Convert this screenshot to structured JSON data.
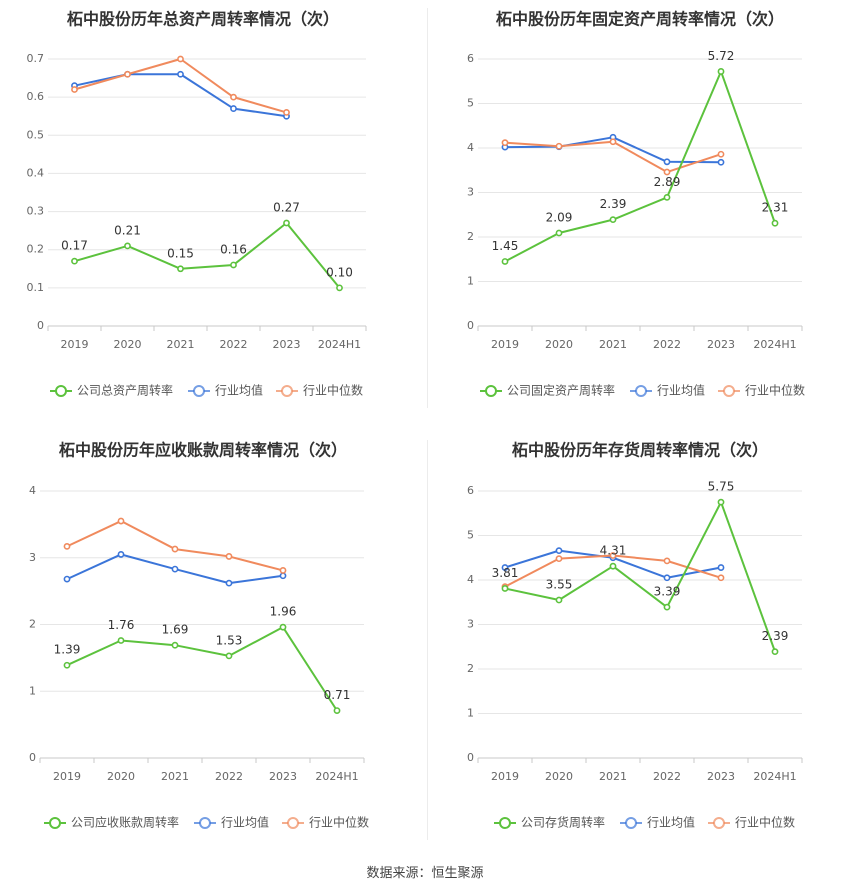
{
  "source_text": "数据来源：恒生聚源",
  "colors": {
    "company": "#5cc23d",
    "avg": "#3b75d9",
    "median": "#f08a5d",
    "grid": "#e6e6e6",
    "axis": "#c9c9c9",
    "tick": "#666666",
    "title": "#333333"
  },
  "chart_data": [
    {
      "type": "line",
      "title": "柘中股份历年总资产周转率情况（次）",
      "categories": [
        "2019",
        "2020",
        "2021",
        "2022",
        "2023",
        "2024H1"
      ],
      "ylim": [
        0,
        0.7
      ],
      "yticks": [
        "0",
        "0.1",
        "0.2",
        "0.3",
        "0.4",
        "0.5",
        "0.6",
        "0.7"
      ],
      "series": [
        {
          "name": "公司总资产周转率",
          "key": "company",
          "values": [
            0.17,
            0.21,
            0.15,
            0.16,
            0.27,
            0.1
          ],
          "labels": [
            "0.17",
            "0.21",
            "0.15",
            "0.16",
            "0.27",
            "0.10"
          ]
        },
        {
          "name": "行业均值",
          "key": "avg",
          "values": [
            0.63,
            0.66,
            0.66,
            0.57,
            0.55,
            null
          ]
        },
        {
          "name": "行业中位数",
          "key": "median",
          "values": [
            0.62,
            0.66,
            0.7,
            0.6,
            0.56,
            null
          ]
        }
      ]
    },
    {
      "type": "line",
      "title": "柘中股份历年固定资产周转率情况（次）",
      "categories": [
        "2019",
        "2020",
        "2021",
        "2022",
        "2023",
        "2024H1"
      ],
      "ylim": [
        0,
        6
      ],
      "yticks": [
        "0",
        "1",
        "2",
        "3",
        "4",
        "5",
        "6"
      ],
      "series": [
        {
          "name": "公司固定资产周转率",
          "key": "company",
          "values": [
            1.45,
            2.09,
            2.39,
            2.89,
            5.72,
            2.31
          ],
          "labels": [
            "1.45",
            "2.09",
            "2.39",
            "2.89",
            "5.72",
            "2.31"
          ]
        },
        {
          "name": "行业均值",
          "key": "avg",
          "values": [
            4.02,
            4.03,
            4.24,
            3.69,
            3.68,
            null
          ]
        },
        {
          "name": "行业中位数",
          "key": "median",
          "values": [
            4.12,
            4.04,
            4.14,
            3.46,
            3.86,
            null
          ]
        }
      ]
    },
    {
      "type": "line",
      "title": "柘中股份历年应收账款周转率情况（次）",
      "categories": [
        "2019",
        "2020",
        "2021",
        "2022",
        "2023",
        "2024H1"
      ],
      "ylim": [
        0,
        4
      ],
      "yticks": [
        "0",
        "1",
        "2",
        "3",
        "4"
      ],
      "series": [
        {
          "name": "公司应收账款周转率",
          "key": "company",
          "values": [
            1.39,
            1.76,
            1.69,
            1.53,
            1.96,
            0.71
          ],
          "labels": [
            "1.39",
            "1.76",
            "1.69",
            "1.53",
            "1.96",
            "0.71"
          ]
        },
        {
          "name": "行业均值",
          "key": "avg",
          "values": [
            2.68,
            3.05,
            2.83,
            2.62,
            2.73,
            null
          ]
        },
        {
          "name": "行业中位数",
          "key": "median",
          "values": [
            3.17,
            3.55,
            3.13,
            3.02,
            2.81,
            null
          ]
        }
      ]
    },
    {
      "type": "line",
      "title": "柘中股份历年存货周转率情况（次）",
      "categories": [
        "2019",
        "2020",
        "2021",
        "2022",
        "2023",
        "2024H1"
      ],
      "ylim": [
        0,
        6
      ],
      "yticks": [
        "0",
        "1",
        "2",
        "3",
        "4",
        "5",
        "6"
      ],
      "series": [
        {
          "name": "公司存货周转率",
          "key": "company",
          "values": [
            3.81,
            3.55,
            4.31,
            3.39,
            5.75,
            2.39
          ],
          "labels": [
            "3.81",
            "3.55",
            "4.31",
            "3.39",
            "5.75",
            "2.39"
          ]
        },
        {
          "name": "行业均值",
          "key": "avg",
          "values": [
            4.28,
            4.66,
            4.5,
            4.05,
            4.28,
            null
          ]
        },
        {
          "name": "行业中位数",
          "key": "median",
          "values": [
            3.85,
            4.48,
            4.55,
            4.43,
            4.05,
            null
          ]
        }
      ]
    }
  ]
}
